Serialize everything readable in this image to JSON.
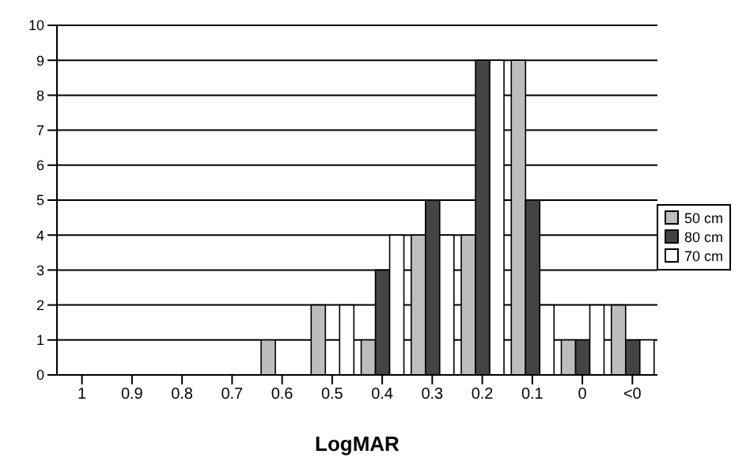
{
  "chart_data": {
    "type": "bar",
    "xlabel": "LogMAR",
    "categories": [
      "1",
      "0.9",
      "0.8",
      "0.7",
      "0.6",
      "0.5",
      "0.4",
      "0.3",
      "0.2",
      "0.1",
      "0",
      "<0"
    ],
    "series": [
      {
        "name": "50 cm",
        "color": "#bdbdbd",
        "values": [
          0,
          0,
          0,
          0,
          1,
          2,
          1,
          4,
          4,
          9,
          1,
          2
        ]
      },
      {
        "name": "80 cm",
        "color": "#444444",
        "values": [
          0,
          0,
          0,
          0,
          0,
          0,
          3,
          5,
          9,
          5,
          1,
          1
        ]
      },
      {
        "name": "70 cm",
        "color": "#ffffff",
        "values": [
          0,
          0,
          0,
          0,
          0,
          2,
          4,
          4,
          9,
          2,
          2,
          1
        ]
      }
    ],
    "ylim": [
      0,
      10
    ],
    "yticks": [
      0,
      1,
      2,
      3,
      4,
      5,
      6,
      7,
      8,
      9,
      10
    ],
    "grid": "y",
    "legend": "right"
  }
}
